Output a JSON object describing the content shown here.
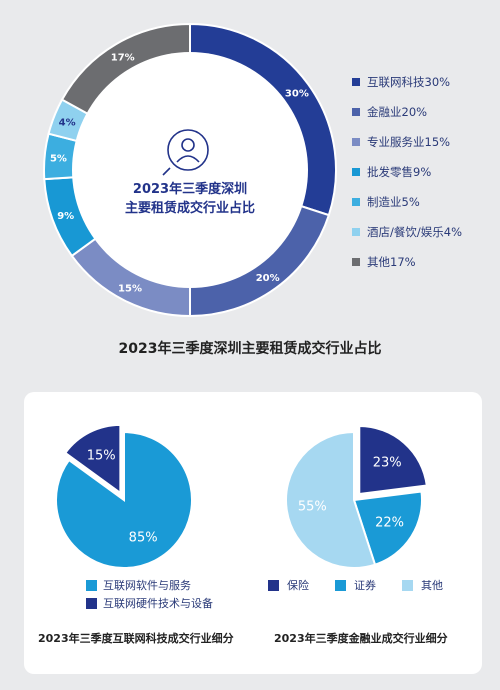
{
  "chart_data": [
    {
      "type": "pie",
      "title": "2023年三季度深圳主要租赁成交行业占比",
      "center_text": [
        "2023年三季度深圳",
        "主要租赁成交行业占比"
      ],
      "slices": [
        {
          "name": "互联网科技",
          "value": 30,
          "label": "30%",
          "legend": "互联网科技30%",
          "color": "#233d96"
        },
        {
          "name": "金融业",
          "value": 20,
          "label": "20%",
          "legend": "金融业20%",
          "color": "#4c62aa"
        },
        {
          "name": "专业服务业",
          "value": 15,
          "label": "15%",
          "legend": "专业服务业15%",
          "color": "#7b8cc4"
        },
        {
          "name": "批发零售",
          "value": 9,
          "label": "9%",
          "legend": "批发零售9%",
          "color": "#1898d4"
        },
        {
          "name": "制造业",
          "value": 5,
          "label": "5%",
          "legend": "制造业5%",
          "color": "#3caee0"
        },
        {
          "name": "酒店/餐饮/娱乐",
          "value": 4,
          "label": "4%",
          "legend": "酒店/餐饮/娱乐4%",
          "color": "#8fd1ef"
        },
        {
          "name": "其他",
          "value": 17,
          "label": "17%",
          "legend": "其他17%",
          "color": "#6c6d70"
        }
      ]
    },
    {
      "type": "pie",
      "title": "2023年三季度互联网科技成交行业细分",
      "slices": [
        {
          "name": "互联网软件与服务",
          "value": 85,
          "label": "85%",
          "color": "#1a9ad6"
        },
        {
          "name": "互联网硬件技术与设备",
          "value": 15,
          "label": "15%",
          "color": "#22338a",
          "exploded": true
        }
      ]
    },
    {
      "type": "pie",
      "title": "2023年三季度金融业成交行业细分",
      "slices": [
        {
          "name": "保险",
          "value": 23,
          "label": "23%",
          "color": "#22338a",
          "exploded": true
        },
        {
          "name": "证券",
          "value": 22,
          "label": "22%",
          "color": "#1a9ad6"
        },
        {
          "name": "其他",
          "value": 55,
          "label": "55%",
          "color": "#a6d8f1"
        }
      ]
    }
  ]
}
